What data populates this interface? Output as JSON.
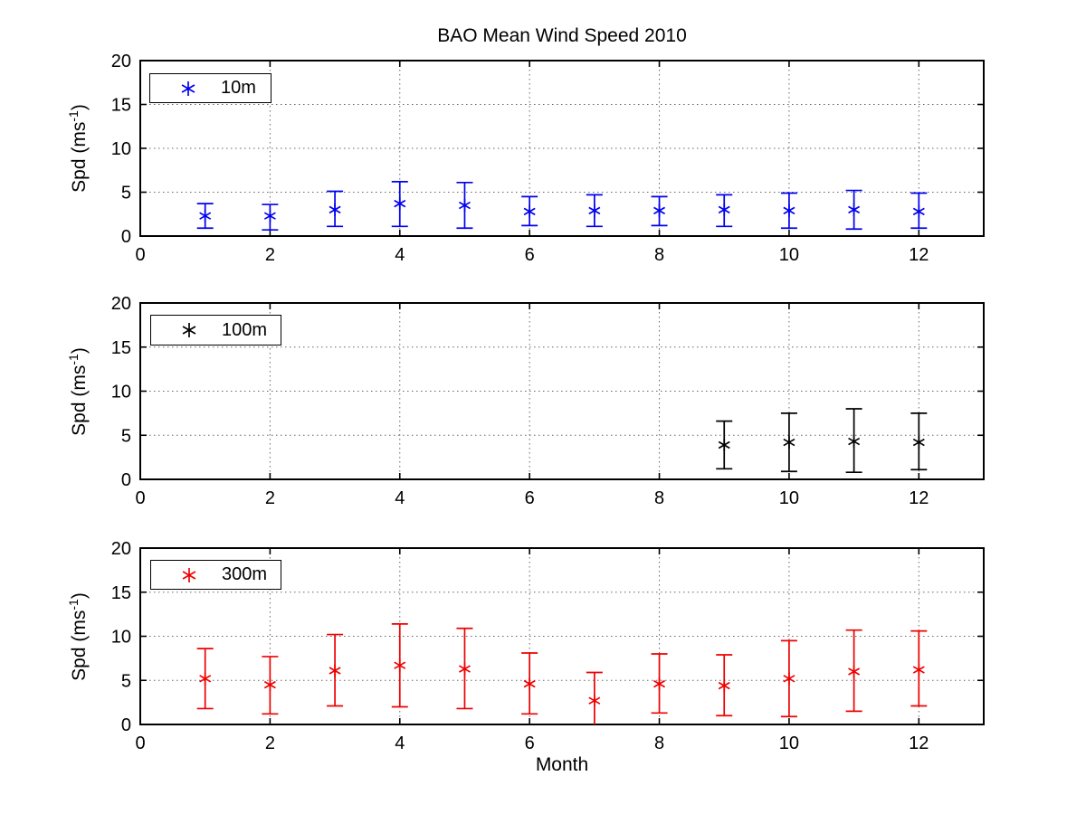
{
  "figure": {
    "title": "BAO Mean Wind Speed  2010",
    "xlabel": "Month",
    "ylabel_pre": "Spd (ms",
    "ylabel_sup": "-1",
    "ylabel_post": ")"
  },
  "chart_data": [
    {
      "type": "scatter",
      "subtype": "errorbar",
      "series_label": "10m",
      "color": "#0000ee",
      "marker": "asterisk",
      "legend_position": "upper-left",
      "grid": true,
      "xlabel": "",
      "ylabel": "Spd (ms^-1)",
      "xlim": [
        0,
        13
      ],
      "ylim": [
        0,
        20
      ],
      "x_ticks": [
        0,
        2,
        4,
        6,
        8,
        10,
        12
      ],
      "y_ticks": [
        0,
        5,
        10,
        15,
        20
      ],
      "x": [
        1,
        2,
        3,
        4,
        5,
        6,
        7,
        8,
        9,
        10,
        11,
        12
      ],
      "mean": [
        2.3,
        2.3,
        3.0,
        3.7,
        3.5,
        2.8,
        2.9,
        2.9,
        3.0,
        2.9,
        3.0,
        2.8
      ],
      "lo": [
        0.9,
        0.7,
        1.1,
        1.1,
        0.9,
        1.2,
        1.1,
        1.2,
        1.1,
        0.9,
        0.8,
        0.9
      ],
      "hi": [
        3.7,
        3.6,
        5.1,
        6.2,
        6.1,
        4.5,
        4.7,
        4.5,
        4.7,
        4.9,
        5.2,
        4.9
      ]
    },
    {
      "type": "scatter",
      "subtype": "errorbar",
      "series_label": "100m",
      "color": "#000000",
      "marker": "asterisk",
      "legend_position": "upper-left",
      "grid": true,
      "xlabel": "",
      "ylabel": "Spd (ms^-1)",
      "xlim": [
        0,
        13
      ],
      "ylim": [
        0,
        20
      ],
      "x_ticks": [
        0,
        2,
        4,
        6,
        8,
        10,
        12
      ],
      "y_ticks": [
        0,
        5,
        10,
        15,
        20
      ],
      "x": [
        9,
        10,
        11,
        12
      ],
      "mean": [
        3.9,
        4.2,
        4.3,
        4.2
      ],
      "lo": [
        1.2,
        0.9,
        0.8,
        1.1
      ],
      "hi": [
        6.6,
        7.5,
        8.0,
        7.5
      ]
    },
    {
      "type": "scatter",
      "subtype": "errorbar",
      "series_label": "300m",
      "color": "#ee0000",
      "marker": "asterisk",
      "legend_position": "upper-left",
      "grid": true,
      "xlabel": "Month",
      "ylabel": "Spd (ms^-1)",
      "xlim": [
        0,
        13
      ],
      "ylim": [
        0,
        20
      ],
      "x_ticks": [
        0,
        2,
        4,
        6,
        8,
        10,
        12
      ],
      "y_ticks": [
        0,
        5,
        10,
        15,
        20
      ],
      "x": [
        1,
        2,
        3,
        4,
        5,
        6,
        7,
        8,
        9,
        10,
        11,
        12
      ],
      "mean": [
        5.2,
        4.5,
        6.1,
        6.7,
        6.3,
        4.6,
        2.7,
        4.6,
        4.4,
        5.2,
        6.0,
        6.2
      ],
      "lo": [
        1.8,
        1.2,
        2.1,
        2.0,
        1.8,
        1.2,
        0.0,
        1.3,
        1.0,
        0.9,
        1.5,
        2.1
      ],
      "hi": [
        8.6,
        7.7,
        10.2,
        11.4,
        10.9,
        8.1,
        5.9,
        8.0,
        7.9,
        9.5,
        10.7,
        10.6
      ],
      "lo_cap_visible": [
        true,
        true,
        true,
        true,
        true,
        true,
        false,
        true,
        true,
        true,
        true,
        true
      ]
    }
  ]
}
